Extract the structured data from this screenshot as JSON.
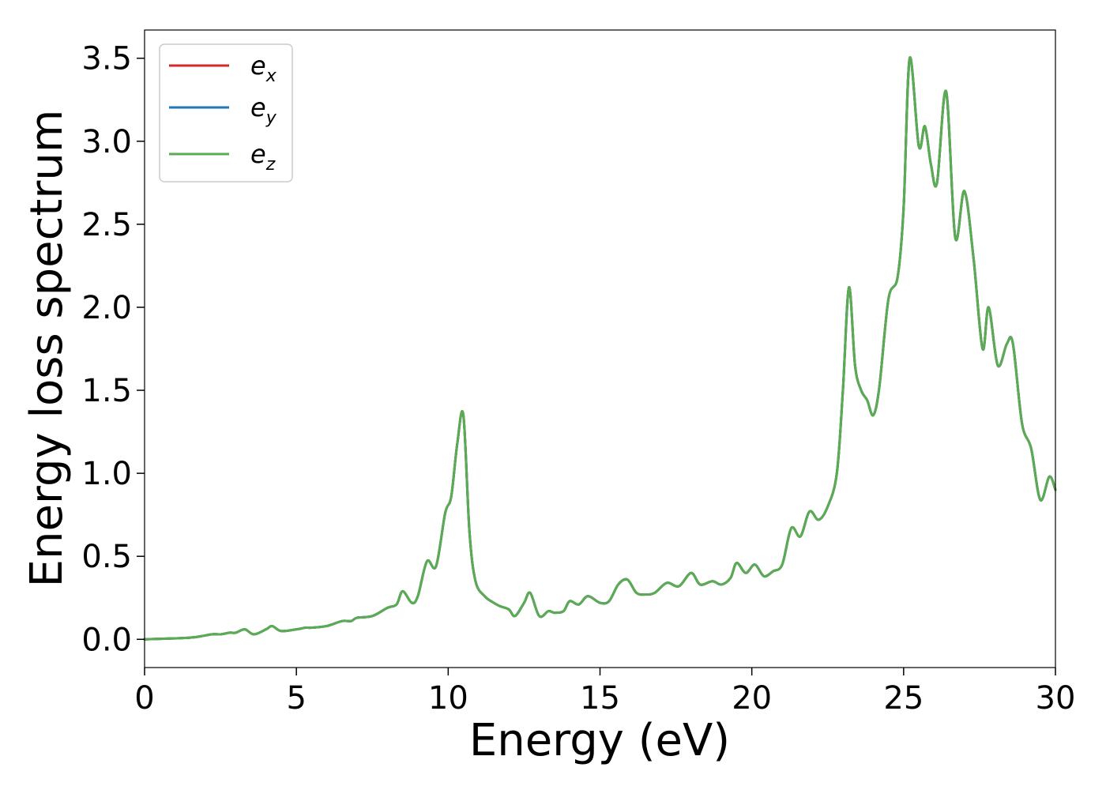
{
  "chart_data": {
    "type": "line",
    "title": "",
    "xlabel": "Energy (eV)",
    "ylabel": "Energy loss spectrum",
    "xlim": [
      0,
      30
    ],
    "ylim": [
      -0.17,
      3.67
    ],
    "xticks": [
      0,
      5,
      10,
      15,
      20,
      25,
      30
    ],
    "xtick_labels": [
      "0",
      "5",
      "10",
      "15",
      "20",
      "25",
      "30"
    ],
    "yticks": [
      0.0,
      0.5,
      1.0,
      1.5,
      2.0,
      2.5,
      3.0,
      3.5
    ],
    "ytick_labels": [
      "0.0",
      "0.5",
      "1.0",
      "1.5",
      "2.0",
      "2.5",
      "3.0",
      "3.5"
    ],
    "grid": false,
    "legend_position": "top-left",
    "series": [
      {
        "name": "e",
        "subscript": "x",
        "color": "#d62728",
        "x": [
          0,
          1.5,
          2.2,
          2.5,
          2.8,
          3.0,
          3.3,
          3.6,
          4.0,
          4.2,
          4.5,
          5.0,
          5.3,
          5.5,
          6.0,
          6.5,
          6.8,
          7.0,
          7.5,
          8.0,
          8.3,
          8.5,
          8.8,
          9.0,
          9.3,
          9.6,
          9.9,
          10.1,
          10.3,
          10.5,
          10.7,
          10.9,
          11.2,
          11.5,
          11.7,
          12.0,
          12.2,
          12.5,
          12.7,
          13.0,
          13.3,
          13.5,
          13.8,
          14.0,
          14.3,
          14.6,
          15.0,
          15.3,
          15.6,
          15.9,
          16.2,
          16.5,
          16.8,
          17.2,
          17.6,
          18.0,
          18.3,
          18.7,
          19.0,
          19.3,
          19.5,
          19.8,
          20.1,
          20.4,
          20.7,
          21.0,
          21.3,
          21.6,
          21.9,
          22.2,
          22.5,
          22.8,
          23.0,
          23.2,
          23.4,
          23.6,
          23.8,
          24.0,
          24.2,
          24.5,
          24.8,
          25.0,
          25.2,
          25.5,
          25.7,
          25.9,
          26.1,
          26.4,
          26.7,
          27.0,
          27.3,
          27.6,
          27.8,
          28.1,
          28.4,
          28.6,
          28.9,
          29.2,
          29.5,
          29.8,
          30.0
        ],
        "y": [
          0.0,
          0.01,
          0.03,
          0.03,
          0.04,
          0.04,
          0.06,
          0.03,
          0.06,
          0.08,
          0.05,
          0.06,
          0.07,
          0.07,
          0.08,
          0.11,
          0.11,
          0.13,
          0.14,
          0.19,
          0.21,
          0.29,
          0.22,
          0.26,
          0.47,
          0.44,
          0.76,
          0.86,
          1.18,
          1.35,
          0.65,
          0.35,
          0.26,
          0.22,
          0.2,
          0.18,
          0.14,
          0.22,
          0.28,
          0.14,
          0.17,
          0.16,
          0.17,
          0.23,
          0.21,
          0.26,
          0.22,
          0.23,
          0.33,
          0.36,
          0.28,
          0.27,
          0.28,
          0.34,
          0.32,
          0.4,
          0.33,
          0.35,
          0.33,
          0.37,
          0.46,
          0.4,
          0.45,
          0.38,
          0.41,
          0.45,
          0.67,
          0.62,
          0.77,
          0.72,
          0.8,
          1.0,
          1.5,
          2.12,
          1.65,
          1.5,
          1.44,
          1.35,
          1.52,
          2.05,
          2.18,
          2.6,
          3.5,
          2.97,
          3.09,
          2.86,
          2.75,
          3.3,
          2.42,
          2.7,
          2.3,
          1.75,
          2.0,
          1.65,
          1.78,
          1.78,
          1.3,
          1.15,
          0.84,
          0.98,
          0.9
        ]
      },
      {
        "name": "e",
        "subscript": "y",
        "color": "#1f77b4",
        "x": [
          0,
          1.5,
          2.2,
          2.5,
          2.8,
          3.0,
          3.3,
          3.6,
          4.0,
          4.2,
          4.5,
          5.0,
          5.3,
          5.5,
          6.0,
          6.5,
          6.8,
          7.0,
          7.5,
          8.0,
          8.3,
          8.5,
          8.8,
          9.0,
          9.3,
          9.6,
          9.9,
          10.1,
          10.3,
          10.5,
          10.7,
          10.9,
          11.2,
          11.5,
          11.7,
          12.0,
          12.2,
          12.5,
          12.7,
          13.0,
          13.3,
          13.5,
          13.8,
          14.0,
          14.3,
          14.6,
          15.0,
          15.3,
          15.6,
          15.9,
          16.2,
          16.5,
          16.8,
          17.2,
          17.6,
          18.0,
          18.3,
          18.7,
          19.0,
          19.3,
          19.5,
          19.8,
          20.1,
          20.4,
          20.7,
          21.0,
          21.3,
          21.6,
          21.9,
          22.2,
          22.5,
          22.8,
          23.0,
          23.2,
          23.4,
          23.6,
          23.8,
          24.0,
          24.2,
          24.5,
          24.8,
          25.0,
          25.2,
          25.5,
          25.7,
          25.9,
          26.1,
          26.4,
          26.7,
          27.0,
          27.3,
          27.6,
          27.8,
          28.1,
          28.4,
          28.6,
          28.9,
          29.2,
          29.5,
          29.8,
          30.0
        ],
        "y": [
          0.0,
          0.01,
          0.03,
          0.03,
          0.04,
          0.04,
          0.06,
          0.03,
          0.06,
          0.08,
          0.05,
          0.06,
          0.07,
          0.07,
          0.08,
          0.11,
          0.11,
          0.13,
          0.14,
          0.19,
          0.21,
          0.29,
          0.22,
          0.26,
          0.47,
          0.44,
          0.76,
          0.86,
          1.18,
          1.35,
          0.65,
          0.35,
          0.26,
          0.22,
          0.2,
          0.18,
          0.14,
          0.22,
          0.28,
          0.14,
          0.17,
          0.16,
          0.17,
          0.23,
          0.21,
          0.26,
          0.22,
          0.23,
          0.33,
          0.36,
          0.28,
          0.27,
          0.28,
          0.34,
          0.32,
          0.4,
          0.33,
          0.35,
          0.33,
          0.37,
          0.46,
          0.4,
          0.45,
          0.38,
          0.41,
          0.45,
          0.67,
          0.62,
          0.77,
          0.72,
          0.8,
          1.0,
          1.5,
          2.12,
          1.65,
          1.5,
          1.44,
          1.35,
          1.52,
          2.05,
          2.18,
          2.6,
          3.5,
          2.97,
          3.09,
          2.86,
          2.75,
          3.3,
          2.42,
          2.7,
          2.3,
          1.75,
          2.0,
          1.65,
          1.78,
          1.78,
          1.3,
          1.15,
          0.84,
          0.98,
          0.9
        ]
      },
      {
        "name": "e",
        "subscript": "z",
        "color": "#5aac52",
        "x": [
          0,
          1.5,
          2.2,
          2.5,
          2.8,
          3.0,
          3.3,
          3.6,
          4.0,
          4.2,
          4.5,
          5.0,
          5.3,
          5.5,
          6.0,
          6.5,
          6.8,
          7.0,
          7.5,
          8.0,
          8.3,
          8.5,
          8.8,
          9.0,
          9.3,
          9.6,
          9.9,
          10.1,
          10.3,
          10.5,
          10.7,
          10.9,
          11.2,
          11.5,
          11.7,
          12.0,
          12.2,
          12.5,
          12.7,
          13.0,
          13.3,
          13.5,
          13.8,
          14.0,
          14.3,
          14.6,
          15.0,
          15.3,
          15.6,
          15.9,
          16.2,
          16.5,
          16.8,
          17.2,
          17.6,
          18.0,
          18.3,
          18.7,
          19.0,
          19.3,
          19.5,
          19.8,
          20.1,
          20.4,
          20.7,
          21.0,
          21.3,
          21.6,
          21.9,
          22.2,
          22.5,
          22.8,
          23.0,
          23.2,
          23.4,
          23.6,
          23.8,
          24.0,
          24.2,
          24.5,
          24.8,
          25.0,
          25.2,
          25.5,
          25.7,
          25.9,
          26.1,
          26.4,
          26.7,
          27.0,
          27.3,
          27.6,
          27.8,
          28.1,
          28.4,
          28.6,
          28.9,
          29.2,
          29.5,
          29.8,
          30.0
        ],
        "y": [
          0.0,
          0.01,
          0.03,
          0.03,
          0.04,
          0.04,
          0.06,
          0.03,
          0.06,
          0.08,
          0.05,
          0.06,
          0.07,
          0.07,
          0.08,
          0.11,
          0.11,
          0.13,
          0.14,
          0.19,
          0.21,
          0.29,
          0.22,
          0.26,
          0.47,
          0.44,
          0.76,
          0.86,
          1.18,
          1.35,
          0.65,
          0.35,
          0.26,
          0.22,
          0.2,
          0.18,
          0.14,
          0.22,
          0.28,
          0.14,
          0.17,
          0.16,
          0.17,
          0.23,
          0.21,
          0.26,
          0.22,
          0.23,
          0.33,
          0.36,
          0.28,
          0.27,
          0.28,
          0.34,
          0.32,
          0.4,
          0.33,
          0.35,
          0.33,
          0.37,
          0.46,
          0.4,
          0.45,
          0.38,
          0.41,
          0.45,
          0.67,
          0.62,
          0.77,
          0.72,
          0.8,
          1.0,
          1.5,
          2.12,
          1.65,
          1.5,
          1.44,
          1.35,
          1.52,
          2.05,
          2.18,
          2.6,
          3.5,
          2.97,
          3.09,
          2.86,
          2.75,
          3.3,
          2.42,
          2.7,
          2.3,
          1.75,
          2.0,
          1.65,
          1.78,
          1.78,
          1.3,
          1.15,
          0.84,
          0.98,
          0.9
        ]
      }
    ]
  }
}
